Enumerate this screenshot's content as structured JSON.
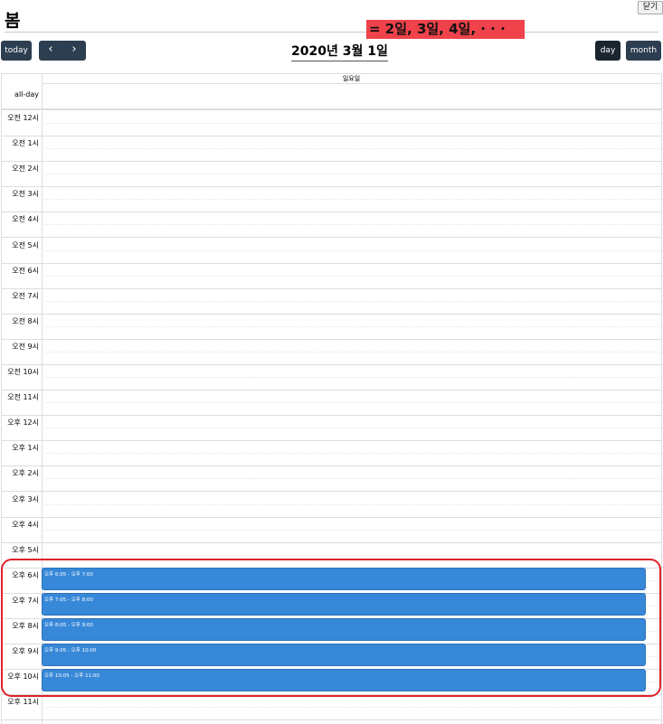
{
  "page": {
    "title": "봄",
    "close_label": "닫기"
  },
  "annotation": {
    "text": "= 2일, 3일, 4일, · · ·"
  },
  "toolbar": {
    "today_label": "today",
    "prev_icon": "‹",
    "next_icon": "›",
    "title": "2020년 3월 1일",
    "view_day_label": "day",
    "view_month_label": "month"
  },
  "calendar": {
    "column_header": "일요일",
    "allday_label": "all-day",
    "slots": [
      "오전 12시",
      "오전 1시",
      "오전 2시",
      "오전 3시",
      "오전 4시",
      "오전 5시",
      "오전 6시",
      "오전 7시",
      "오전 8시",
      "오전 9시",
      "오전 10시",
      "오전 11시",
      "오후 12시",
      "오후 1시",
      "오후 2시",
      "오후 3시",
      "오후 4시",
      "오후 5시",
      "오후 6시",
      "오후 7시",
      "오후 8시",
      "오후 9시",
      "오후 10시",
      "오후 11시"
    ],
    "events": [
      {
        "time": "오후 6:05 - 오후 7:00"
      },
      {
        "time": "오후 7:05 - 오후 8:00"
      },
      {
        "time": "오후 8:05 - 오후 9:00"
      },
      {
        "time": "오후 9:05 - 오후 10:00"
      },
      {
        "time": "오후 10:05 - 오후 11:00"
      }
    ],
    "event_color": "#3788d8"
  },
  "colors": {
    "button": "#2c3e50",
    "annotation_bg": "#f0424a",
    "highlight_border": "#e0202a"
  }
}
